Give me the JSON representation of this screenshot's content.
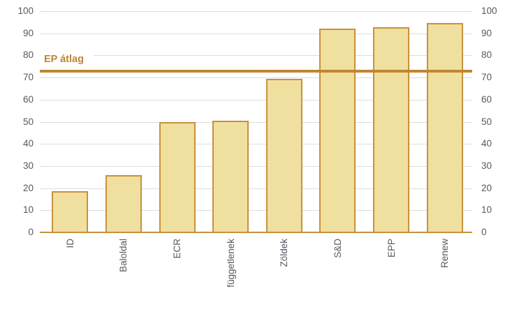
{
  "chart_data": {
    "type": "bar",
    "categories": [
      "ID",
      "Baloldal",
      "ECR",
      "függetlenek",
      "Zöldek",
      "S&D",
      "EPP",
      "Renew"
    ],
    "values": [
      18.5,
      26,
      49.8,
      50.4,
      69.4,
      92,
      92.8,
      94.5
    ],
    "title": "",
    "xlabel": "",
    "ylabel": "",
    "ylim": [
      0,
      100
    ],
    "yticks": [
      0,
      10,
      20,
      30,
      40,
      50,
      60,
      70,
      80,
      90,
      100
    ],
    "grid": true,
    "legend": "none",
    "y_axis_sides": [
      "left",
      "right"
    ],
    "x_label_rotation_degrees": -90,
    "reference_line": {
      "label": "EP átlag",
      "value": 73
    },
    "colors": {
      "bar_fill": "#f0e0a0",
      "bar_border": "#c6913c",
      "reference_line": "#c08531",
      "reference_label": "#c08531",
      "gridline": "#dddddd",
      "baseline": "#c6913c",
      "axis_text": "#585861",
      "background": "#ffffff"
    }
  }
}
